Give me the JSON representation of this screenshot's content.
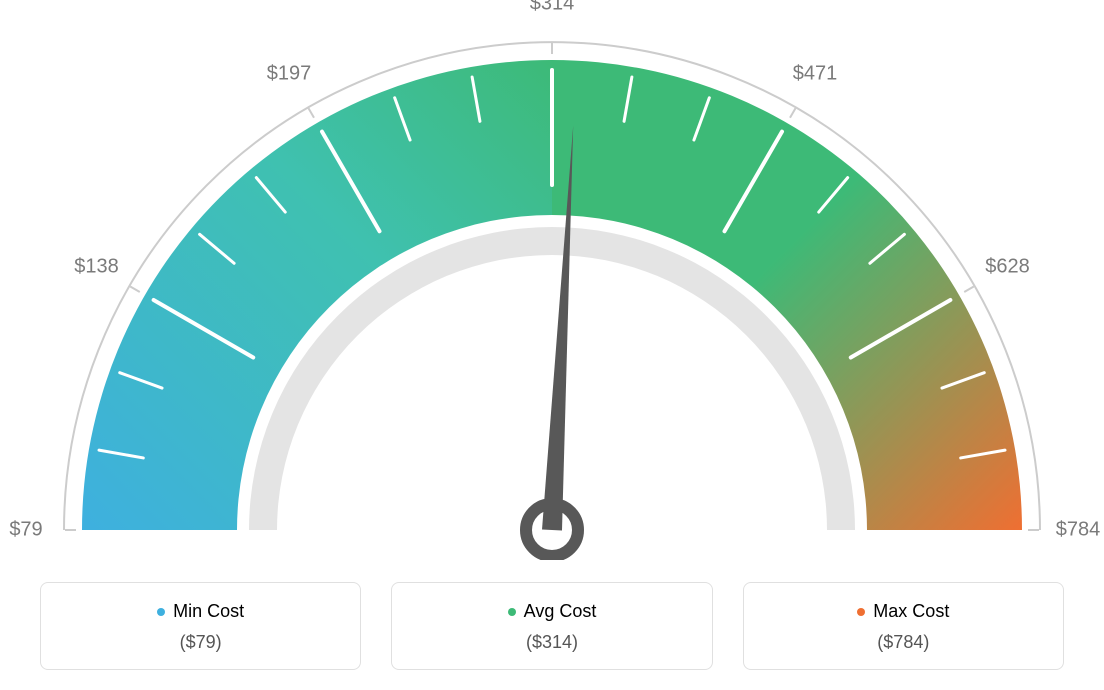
{
  "gauge": {
    "type": "gauge",
    "min": 79,
    "max": 784,
    "avg": 314,
    "tick_labels": [
      "$79",
      "$138",
      "$197",
      "$314",
      "$471",
      "$628",
      "$784"
    ],
    "tick_angles_deg": [
      -180,
      -150,
      -120,
      -90,
      -60,
      -30,
      0
    ],
    "colors": {
      "min": "#3eb0df",
      "avg": "#3dba77",
      "max": "#ef6f32",
      "track": "#e4e4e4",
      "outer_line": "#cccccc",
      "tick_mark": "#ffffff",
      "needle": "#585858",
      "label_text": "#7a7a7a",
      "legend_text": "#555555",
      "legend_border": "#e0e0e0"
    },
    "label_fontsize": 20,
    "legend_fontsize": 18
  },
  "legend": {
    "min": {
      "label": "Min Cost",
      "value": "($79)"
    },
    "avg": {
      "label": "Avg Cost",
      "value": "($314)"
    },
    "max": {
      "label": "Max Cost",
      "value": "($784)"
    }
  }
}
